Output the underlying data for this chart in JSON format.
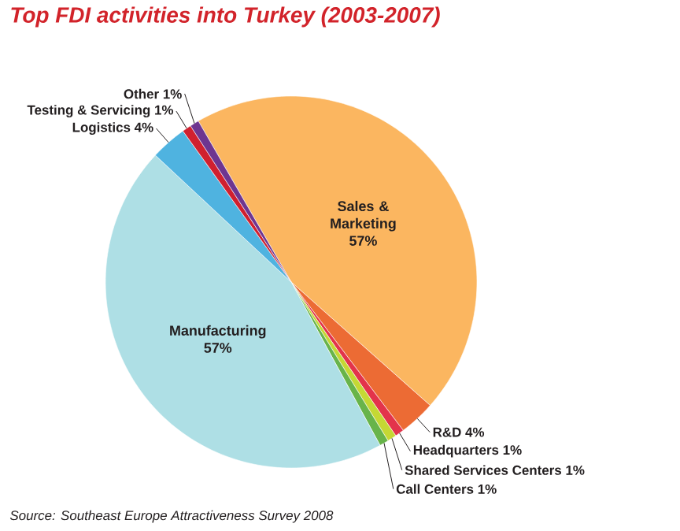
{
  "chart_data": {
    "type": "pie",
    "title": "Top FDI activities into Turkey (2003-2007)",
    "categories": [
      "Sales & Marketing",
      "R&D",
      "Headquarters",
      "Shared Services Centers",
      "Call Centers",
      "Manufacturing",
      "Logistics",
      "Testing & Servicing",
      "Other"
    ],
    "values": [
      57,
      4,
      1,
      1,
      1,
      57,
      4,
      1,
      1
    ],
    "value_labels": [
      "57%",
      "4%",
      "1%",
      "1%",
      "1%",
      "57%",
      "4%",
      "1%",
      "1%"
    ],
    "colors": [
      "#fbb660",
      "#ec6b34",
      "#e3344b",
      "#c5d834",
      "#68b44a",
      "#aedfe5",
      "#4fb3e0",
      "#d0202f",
      "#6e3590"
    ],
    "annotations": [
      "Source: Southeast Europe Attractiveness Survey 2008"
    ]
  }
}
